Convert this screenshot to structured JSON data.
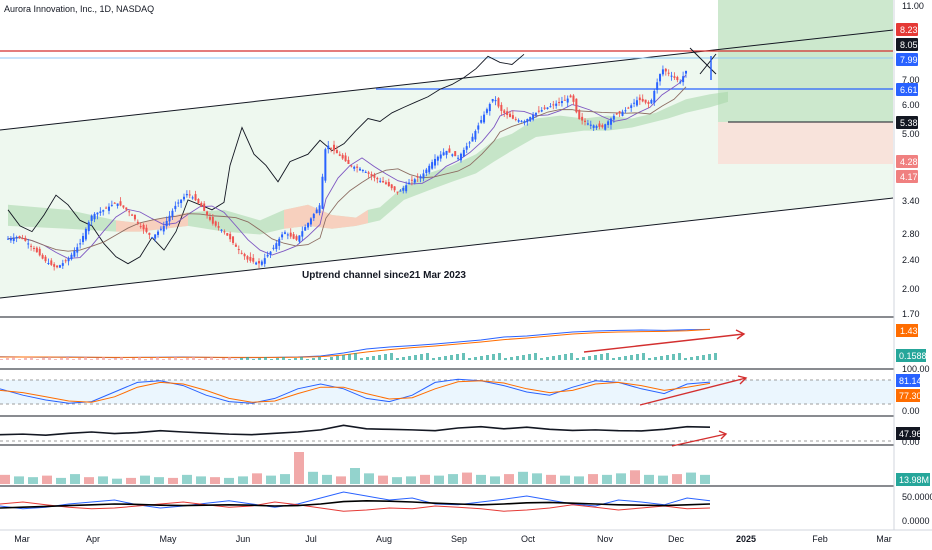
{
  "header": {
    "symbol_line": "Aurora Innovation, Inc., 1D, NASDAQ"
  },
  "annotation": "Uptrend channel since21 Mar 2023",
  "colors": {
    "up": "#2962ff",
    "down": "#ef5350",
    "resistance": "#d32f2f",
    "channel": "#131722",
    "cloud": "#a5d6a7",
    "cloud_bear": "#ffccbc",
    "target_zone": "#c8e6c9",
    "stop_zone": "#f8e0d8",
    "orange": "#ff6d00",
    "teal": "#26a69a"
  },
  "chart_data": [
    {
      "type": "candlestick",
      "title": "Aurora Innovation, Inc., 1D, NASDAQ",
      "x_tick_labels": [
        "Mar",
        "Apr",
        "May",
        "Jun",
        "Jul",
        "Aug",
        "Sep",
        "Oct",
        "Nov",
        "Dec",
        "2025",
        "Feb",
        "Mar"
      ],
      "y_scale": "log",
      "y_tick_labels": [
        "11.00",
        "7.00",
        "6.00",
        "5.00",
        "3.40",
        "2.80",
        "2.40",
        "2.00"
      ],
      "ylim": [
        1.7,
        11.0
      ],
      "price_badges": [
        {
          "value": "8.23",
          "color": "#e53935"
        },
        {
          "value": "8.05",
          "color": "#131722"
        },
        {
          "value": "7.99",
          "color": "#2962ff"
        },
        {
          "value": "6.61",
          "color": "#2962ff"
        },
        {
          "value": "5.38",
          "color": "#131722"
        },
        {
          "value": "4.28",
          "color": "#f08080"
        },
        {
          "value": "4.17",
          "color": "#f08080"
        }
      ],
      "close_path": [
        [
          0,
          2.68
        ],
        [
          0.02,
          2.72
        ],
        [
          0.04,
          2.55
        ],
        [
          0.06,
          2.35
        ],
        [
          0.08,
          2.24
        ],
        [
          0.1,
          2.36
        ],
        [
          0.12,
          2.6
        ],
        [
          0.14,
          3.1
        ],
        [
          0.16,
          3.2
        ],
        [
          0.18,
          3.35
        ],
        [
          0.2,
          3.18
        ],
        [
          0.22,
          2.9
        ],
        [
          0.24,
          2.7
        ],
        [
          0.26,
          2.9
        ],
        [
          0.28,
          3.3
        ],
        [
          0.3,
          3.55
        ],
        [
          0.32,
          3.3
        ],
        [
          0.34,
          2.95
        ],
        [
          0.36,
          2.8
        ],
        [
          0.38,
          2.55
        ],
        [
          0.4,
          2.35
        ],
        [
          0.42,
          2.3
        ],
        [
          0.44,
          2.5
        ],
        [
          0.46,
          2.8
        ],
        [
          0.48,
          2.65
        ],
        [
          0.5,
          2.95
        ],
        [
          0.52,
          3.3
        ],
        [
          0.53,
          4.8
        ],
        [
          0.55,
          4.5
        ],
        [
          0.57,
          4.2
        ],
        [
          0.59,
          4.1
        ],
        [
          0.61,
          3.9
        ],
        [
          0.63,
          3.75
        ],
        [
          0.65,
          3.55
        ],
        [
          0.67,
          3.8
        ],
        [
          0.69,
          3.95
        ],
        [
          0.71,
          4.35
        ],
        [
          0.73,
          4.6
        ],
        [
          0.75,
          4.4
        ],
        [
          0.77,
          4.85
        ],
        [
          0.79,
          5.6
        ],
        [
          0.81,
          6.4
        ],
        [
          0.82,
          5.9
        ],
        [
          0.84,
          5.6
        ],
        [
          0.86,
          5.5
        ],
        [
          0.88,
          5.8
        ],
        [
          0.9,
          6.0
        ],
        [
          0.92,
          6.2
        ],
        [
          0.94,
          6.4
        ],
        [
          0.95,
          5.6
        ],
        [
          0.97,
          5.4
        ],
        [
          0.99,
          5.3
        ],
        [
          1.01,
          5.7
        ],
        [
          1.03,
          5.9
        ],
        [
          1.05,
          6.3
        ],
        [
          1.07,
          6.1
        ],
        [
          1.09,
          7.6
        ],
        [
          1.11,
          7.2
        ],
        [
          1.12,
          7.0
        ],
        [
          1.13,
          7.5
        ]
      ],
      "lagging_span": [
        [
          0,
          3.2
        ],
        [
          0.02,
          2.9
        ],
        [
          0.04,
          2.8
        ],
        [
          0.06,
          3.1
        ],
        [
          0.08,
          3.5
        ],
        [
          0.1,
          3.3
        ],
        [
          0.12,
          3.0
        ],
        [
          0.14,
          2.9
        ],
        [
          0.16,
          2.6
        ],
        [
          0.18,
          2.4
        ],
        [
          0.2,
          2.3
        ],
        [
          0.22,
          2.4
        ],
        [
          0.24,
          2.7
        ],
        [
          0.26,
          2.5
        ],
        [
          0.28,
          2.8
        ],
        [
          0.3,
          3.4
        ],
        [
          0.32,
          3.3
        ],
        [
          0.34,
          3.2
        ],
        [
          0.36,
          3.35
        ],
        [
          0.37,
          4.2
        ],
        [
          0.39,
          5.3
        ],
        [
          0.41,
          4.5
        ],
        [
          0.43,
          4.2
        ],
        [
          0.45,
          3.8
        ],
        [
          0.47,
          4.3
        ],
        [
          0.5,
          4.5
        ],
        [
          0.52,
          4.9
        ],
        [
          0.54,
          4.6
        ],
        [
          0.56,
          4.8
        ],
        [
          0.58,
          5.2
        ],
        [
          0.6,
          5.6
        ],
        [
          0.62,
          5.5
        ],
        [
          0.64,
          5.8
        ],
        [
          0.66,
          6.0
        ],
        [
          0.68,
          6.2
        ],
        [
          0.7,
          6.4
        ],
        [
          0.72,
          6.7
        ],
        [
          0.74,
          6.9
        ],
        [
          0.76,
          7.2
        ],
        [
          0.78,
          7.6
        ],
        [
          0.8,
          8.2
        ],
        [
          0.82,
          7.9
        ],
        [
          0.84,
          7.8
        ],
        [
          0.86,
          8.3
        ]
      ],
      "cloud_top": [
        [
          0,
          3.3
        ],
        [
          0.1,
          3.2
        ],
        [
          0.18,
          3.0
        ],
        [
          0.22,
          2.95
        ],
        [
          0.3,
          3.15
        ],
        [
          0.36,
          3.2
        ],
        [
          0.42,
          3.0
        ],
        [
          0.46,
          3.2
        ],
        [
          0.5,
          3.3
        ],
        [
          0.54,
          3.1
        ],
        [
          0.58,
          3.05
        ],
        [
          0.6,
          3.2
        ],
        [
          0.62,
          3.25
        ],
        [
          0.66,
          3.7
        ],
        [
          0.7,
          4.0
        ],
        [
          0.74,
          4.2
        ],
        [
          0.78,
          4.5
        ],
        [
          0.81,
          4.9
        ],
        [
          0.84,
          5.1
        ],
        [
          0.88,
          5.6
        ],
        [
          0.92,
          5.7
        ],
        [
          0.96,
          5.6
        ],
        [
          1.0,
          5.7
        ],
        [
          1.04,
          5.6
        ],
        [
          1.08,
          5.8
        ],
        [
          1.1,
          6.0
        ],
        [
          1.13,
          6.3
        ],
        [
          1.17,
          6.5
        ],
        [
          1.2,
          6.6
        ]
      ],
      "cloud_bottom": [
        [
          0,
          2.9
        ],
        [
          0.1,
          2.85
        ],
        [
          0.18,
          2.8
        ],
        [
          0.22,
          2.8
        ],
        [
          0.3,
          2.9
        ],
        [
          0.36,
          2.8
        ],
        [
          0.42,
          2.75
        ],
        [
          0.46,
          2.85
        ],
        [
          0.5,
          2.9
        ],
        [
          0.54,
          2.85
        ],
        [
          0.58,
          2.9
        ],
        [
          0.6,
          2.95
        ],
        [
          0.62,
          3.0
        ],
        [
          0.66,
          3.4
        ],
        [
          0.7,
          3.6
        ],
        [
          0.74,
          3.8
        ],
        [
          0.78,
          4.0
        ],
        [
          0.81,
          4.3
        ],
        [
          0.84,
          4.6
        ],
        [
          0.88,
          5.0
        ],
        [
          0.92,
          5.1
        ],
        [
          0.96,
          5.2
        ],
        [
          1.0,
          5.2
        ],
        [
          1.04,
          5.3
        ],
        [
          1.08,
          5.5
        ],
        [
          1.1,
          5.6
        ],
        [
          1.13,
          5.8
        ],
        [
          1.17,
          6.0
        ],
        [
          1.2,
          6.2
        ]
      ],
      "bear_cloud_ranges": [
        [
          0.18,
          0.3
        ],
        [
          0.43,
          0.6
        ]
      ]
    },
    {
      "type": "line",
      "title": "",
      "series": [
        {
          "color": "#2962ff",
          "values": [
            0.06,
            0.05,
            0.04,
            0.05,
            0.03,
            0.02,
            0.03,
            0.04,
            0.05,
            0.03,
            0.02,
            0.02,
            0.03,
            0.05,
            0.1,
            0.25,
            0.45,
            0.55,
            0.62,
            0.7,
            0.8,
            0.9,
            1.05,
            1.1,
            1.2,
            1.3,
            1.35,
            1.38,
            1.4,
            1.38,
            1.41,
            1.43
          ]
        },
        {
          "color": "#ff6d00",
          "values": [
            0.05,
            0.05,
            0.05,
            0.04,
            0.04,
            0.03,
            0.03,
            0.03,
            0.04,
            0.04,
            0.03,
            0.03,
            0.03,
            0.04,
            0.07,
            0.15,
            0.3,
            0.42,
            0.52,
            0.6,
            0.7,
            0.8,
            0.92,
            1.0,
            1.1,
            1.2,
            1.26,
            1.3,
            1.32,
            1.33,
            1.36,
            1.43
          ]
        }
      ],
      "hist_badge": "0.1588",
      "value_badges": [
        "1.43"
      ],
      "y_tick_labels": [
        "1.70"
      ]
    },
    {
      "type": "line",
      "title": "",
      "series": [
        {
          "color": "#2962ff",
          "values": [
            60,
            40,
            25,
            15,
            20,
            50,
            80,
            85,
            70,
            40,
            20,
            15,
            30,
            60,
            75,
            60,
            30,
            20,
            40,
            80,
            90,
            85,
            70,
            50,
            40,
            65,
            85,
            80,
            60,
            45,
            75,
            81
          ]
        },
        {
          "color": "#ff6d00",
          "values": [
            55,
            48,
            35,
            22,
            18,
            35,
            65,
            80,
            75,
            55,
            30,
            18,
            22,
            45,
            65,
            65,
            45,
            28,
            32,
            60,
            82,
            85,
            78,
            60,
            48,
            55,
            75,
            80,
            70,
            55,
            65,
            77
          ]
        }
      ],
      "value_badges": [
        "81.14",
        "77.30"
      ],
      "y_tick_labels": [
        "100.00",
        "0.00"
      ]
    },
    {
      "type": "line",
      "title": "",
      "series": [
        {
          "color": "#131722",
          "values": [
            20,
            22,
            18,
            25,
            30,
            24,
            28,
            35,
            30,
            26,
            22,
            20,
            25,
            30,
            38,
            55,
            42,
            40,
            38,
            35,
            45,
            50,
            42,
            48,
            40,
            36,
            38,
            35,
            34,
            40,
            50,
            47.96
          ]
        }
      ],
      "value_badges": [
        "47.96"
      ],
      "y_tick_labels": [
        "0.00"
      ]
    },
    {
      "type": "bar",
      "title": "",
      "values": [
        1.2,
        1.0,
        0.9,
        1.1,
        0.8,
        1.3,
        0.9,
        1.0,
        0.7,
        0.8,
        1.1,
        0.9,
        0.8,
        1.2,
        1.0,
        0.9,
        0.8,
        1.0,
        1.4,
        1.1,
        1.3,
        4.2,
        1.6,
        1.2,
        1.0,
        2.1,
        1.4,
        1.1,
        0.9,
        1.0,
        1.2,
        1.1,
        1.3,
        1.5,
        1.2,
        1.0,
        1.3,
        1.6,
        1.4,
        1.2,
        1.1,
        1.0,
        1.3,
        1.2,
        1.4,
        1.8,
        1.2,
        1.1,
        1.3,
        1.5,
        1.2
      ],
      "value_badges": [
        "13.98M"
      ]
    },
    {
      "type": "line",
      "title": "",
      "series": [
        {
          "color": "#2962ff",
          "values": [
            25,
            18,
            22,
            30,
            35,
            40,
            28,
            20,
            25,
            32,
            38,
            30,
            22,
            30,
            45,
            60,
            50,
            40,
            45,
            30,
            28,
            35,
            42,
            50,
            40,
            30,
            25,
            40,
            35,
            28,
            45,
            38
          ]
        },
        {
          "color": "#e53935",
          "values": [
            30,
            35,
            28,
            22,
            18,
            20,
            25,
            30,
            35,
            28,
            22,
            25,
            35,
            28,
            20,
            12,
            15,
            20,
            18,
            25,
            22,
            18,
            12,
            15,
            20,
            28,
            22,
            15,
            20,
            25,
            18,
            20
          ]
        },
        {
          "color": "#000000",
          "values": [
            20,
            22,
            24,
            26,
            28,
            30,
            29,
            27,
            26,
            27,
            28,
            27,
            25,
            26,
            30,
            36,
            38,
            37,
            35,
            32,
            30,
            28,
            30,
            33,
            34,
            32,
            30,
            28,
            27,
            26,
            28,
            30
          ]
        }
      ],
      "y_tick_labels": [
        "50.0000",
        "0.0000"
      ]
    }
  ]
}
